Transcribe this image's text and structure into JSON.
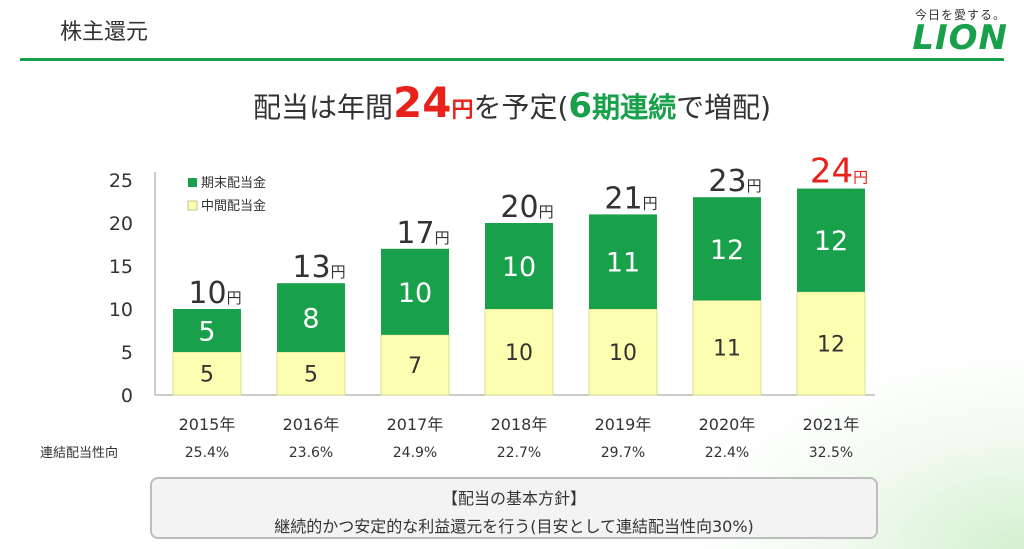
{
  "header": {
    "title": "株主還元",
    "brand_tagline": "今日を愛する。",
    "brand_logo": "LION"
  },
  "headline": {
    "part1": "配当は年間",
    "amount": "24",
    "amount_unit": "円",
    "part2": "を予定(",
    "streak_number": "6",
    "streak_text": "期連続",
    "part3": "で増配)"
  },
  "chart_data": {
    "type": "bar",
    "stacked": true,
    "categories": [
      "2015年",
      "2016年",
      "2017年",
      "2018年",
      "2019年",
      "2020年",
      "2021年"
    ],
    "series": [
      {
        "name": "中間配当金",
        "values": [
          5,
          5,
          7,
          10,
          10,
          11,
          12
        ]
      },
      {
        "name": "期末配当金",
        "values": [
          5,
          8,
          10,
          10,
          11,
          12,
          12
        ]
      }
    ],
    "totals": [
      10,
      13,
      17,
      20,
      21,
      23,
      24
    ],
    "total_unit": "円",
    "ylim": [
      0,
      25
    ],
    "yticks": [
      0,
      5,
      10,
      15,
      20,
      25
    ],
    "payout_ratio_label": "連結配当性向",
    "payout_ratios": [
      "25.4%",
      "23.6%",
      "24.9%",
      "22.7%",
      "29.7%",
      "22.4%",
      "32.5%"
    ],
    "legend_position": "top-left",
    "colors": {
      "interim": "#fefeb0",
      "year_end": "#19a04b",
      "highlight": "#e8221a",
      "total_text": "#333333"
    }
  },
  "policy": {
    "title": "【配当の基本方針】",
    "body": "継続的かつ安定的な利益還元を行う(目安として連結配当性向30%)"
  }
}
